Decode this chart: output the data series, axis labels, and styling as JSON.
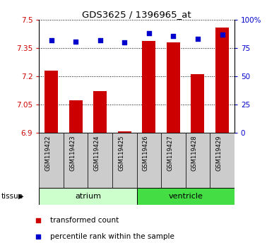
{
  "title": "GDS3625 / 1396965_at",
  "samples": [
    "GSM119422",
    "GSM119423",
    "GSM119424",
    "GSM119425",
    "GSM119426",
    "GSM119427",
    "GSM119428",
    "GSM119429"
  ],
  "transformed_counts": [
    7.23,
    7.07,
    7.12,
    6.905,
    7.39,
    7.38,
    7.21,
    7.46
  ],
  "percentile_ranks": [
    82,
    81,
    82,
    80,
    88,
    86,
    83,
    87
  ],
  "ymin": 6.9,
  "ymax": 7.5,
  "yticks": [
    6.9,
    7.05,
    7.2,
    7.35,
    7.5
  ],
  "ytick_labels": [
    "6.9",
    "7.05",
    "7.2",
    "7.35",
    "7.5"
  ],
  "right_yticks": [
    0,
    25,
    50,
    75,
    100
  ],
  "right_ytick_labels": [
    "0",
    "25",
    "50",
    "75",
    "100%"
  ],
  "bar_color": "#cc0000",
  "dot_color": "#0000cc",
  "bar_bottom": 6.9,
  "tissue_groups": [
    {
      "label": "atrium",
      "start": 0,
      "end": 4
    },
    {
      "label": "ventricle",
      "start": 4,
      "end": 8
    }
  ],
  "atrium_color": "#ccffcc",
  "ventricle_color": "#44dd44",
  "tissue_label": "tissue",
  "legend_items": [
    {
      "label": "transformed count",
      "color": "#cc0000"
    },
    {
      "label": "percentile rank within the sample",
      "color": "#0000cc"
    }
  ],
  "tick_label_color_left": "#cc0000",
  "tick_label_color_right": "#0000cc",
  "sample_bg_color": "#cccccc"
}
